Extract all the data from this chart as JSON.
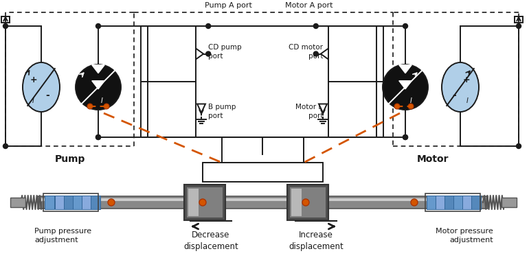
{
  "pump_label": "Pump",
  "motor_label": "Motor",
  "pump_a_port": "Pump A port",
  "motor_a_port": "Motor A port",
  "cd_pump_port": "CD pump\nport",
  "b_pump_port": "B pump\nport",
  "cd_motor_port": "CD motor\nport",
  "motor_b_port": "Motor B\nport",
  "pump_pressure": "Pump pressure\nadjustment",
  "motor_pressure": "Motor pressure\nadjustment",
  "decrease_disp": "Decrease\ndisplacement",
  "increase_disp": "Increase\ndisplacement",
  "bg_color": "#ffffff",
  "lc": "#1a1a1a",
  "oc": "#d45500",
  "blue_fill": "#b0cfe8",
  "lw": 1.4
}
